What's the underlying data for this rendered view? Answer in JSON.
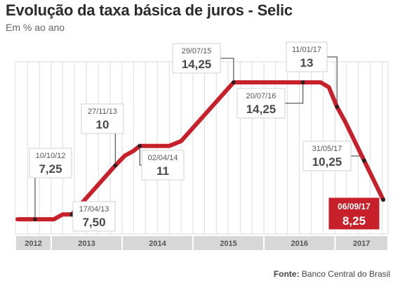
{
  "header": {
    "title": "Evolução da taxa básica de juros - Selic",
    "subtitle": "Em % ao ano"
  },
  "footer": {
    "source_label": "Fonte:",
    "source_text": "Banco Central do Brasil"
  },
  "colors": {
    "line": "#c8202a",
    "highlight": "#c8202a",
    "grid": "#dddddd",
    "axis_band": "#d7d7d7"
  },
  "chart_data": {
    "type": "line",
    "title": "Evolução da taxa básica de juros - Selic",
    "subtitle": "Em % ao ano",
    "xlabel": "",
    "ylabel": "",
    "x_ticks": [
      "2012",
      "2013",
      "2014",
      "2015",
      "2016",
      "2017"
    ],
    "xlim": [
      "2012-07-01",
      "2017-10-01"
    ],
    "ylim": [
      6.5,
      15.3
    ],
    "grid": "vertical",
    "series": [
      {
        "points": [
          {
            "date": "2012-07-12",
            "value": 7.25
          },
          {
            "date": "2012-10-10",
            "value": 7.25
          },
          {
            "date": "2013-01-15",
            "value": 7.25
          },
          {
            "date": "2013-03-01",
            "value": 7.5
          },
          {
            "date": "2013-04-17",
            "value": 7.5
          },
          {
            "date": "2013-11-27",
            "value": 10
          },
          {
            "date": "2014-01-15",
            "value": 10.5
          },
          {
            "date": "2014-03-01",
            "value": 10.75
          },
          {
            "date": "2014-04-02",
            "value": 11
          },
          {
            "date": "2014-09-01",
            "value": 11
          },
          {
            "date": "2014-11-01",
            "value": 11.25
          },
          {
            "date": "2015-07-29",
            "value": 14.25
          },
          {
            "date": "2016-07-20",
            "value": 14.25
          },
          {
            "date": "2016-10-19",
            "value": 14.25
          },
          {
            "date": "2016-11-30",
            "value": 14
          },
          {
            "date": "2017-01-11",
            "value": 13
          },
          {
            "date": "2017-02-22",
            "value": 12.25
          },
          {
            "date": "2017-05-31",
            "value": 10.25
          },
          {
            "date": "2017-09-06",
            "value": 8.25
          }
        ]
      }
    ],
    "annotations": [
      {
        "date": "10/10/12",
        "value": "7,25",
        "at": "2012-10-10",
        "v": 7.25,
        "highlight": false
      },
      {
        "date": "17/04/13",
        "value": "7,50",
        "at": "2013-04-17",
        "v": 7.5,
        "highlight": false
      },
      {
        "date": "27/11/13",
        "value": "10",
        "at": "2013-11-27",
        "v": 10,
        "highlight": false
      },
      {
        "date": "02/04/14",
        "value": "11",
        "at": "2014-04-02",
        "v": 11,
        "highlight": false
      },
      {
        "date": "29/07/15",
        "value": "14,25",
        "at": "2015-07-29",
        "v": 14.25,
        "highlight": false
      },
      {
        "date": "20/07/16",
        "value": "14,25",
        "at": "2016-07-20",
        "v": 14.25,
        "highlight": false
      },
      {
        "date": "11/01/17",
        "value": "13",
        "at": "2017-01-11",
        "v": 13,
        "highlight": false
      },
      {
        "date": "31/05/17",
        "value": "10,25",
        "at": "2017-05-31",
        "v": 10.25,
        "highlight": false
      },
      {
        "date": "06/09/17",
        "value": "8,25",
        "at": "2017-09-06",
        "v": 8.25,
        "highlight": true
      }
    ]
  }
}
